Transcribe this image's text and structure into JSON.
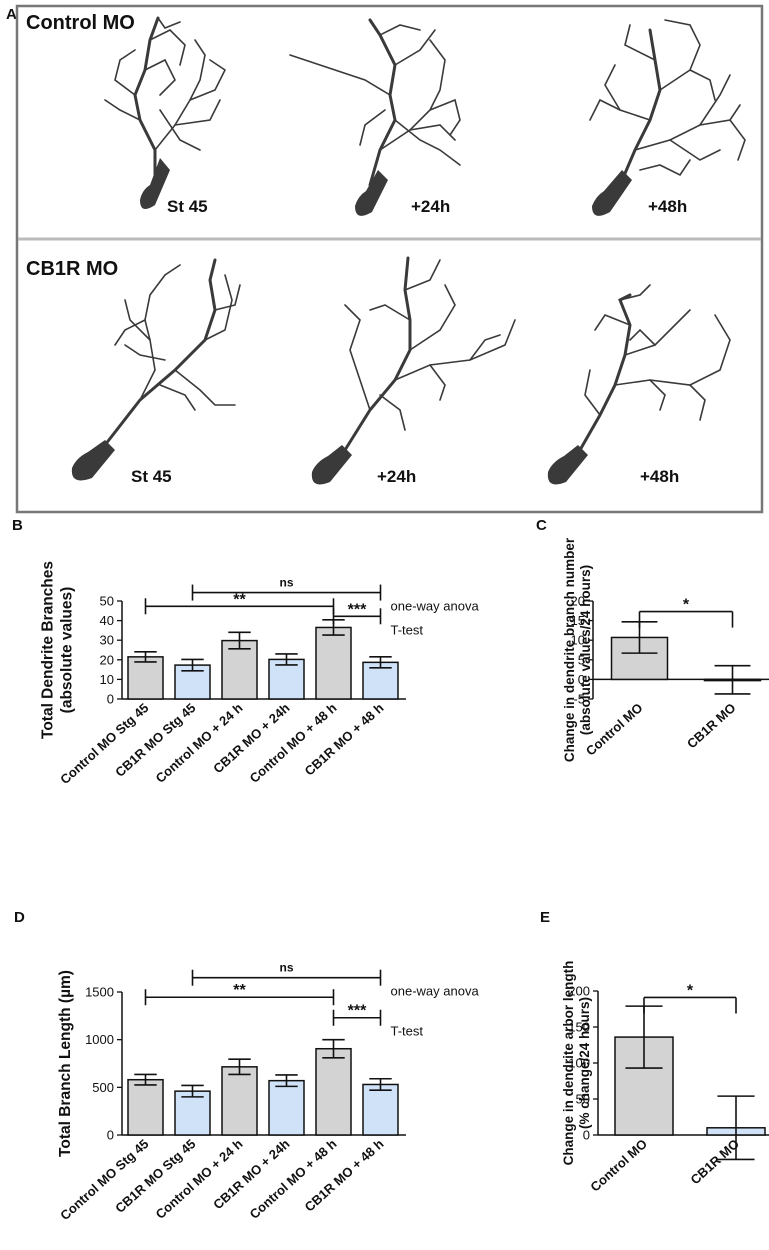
{
  "panel_a": {
    "letter": "A",
    "rows": [
      {
        "group": "Control MO",
        "timepoints": [
          "St 45",
          "+24h",
          "+48h"
        ]
      },
      {
        "group": "CB1R MO",
        "timepoints": [
          "St 45",
          "+24h",
          "+48h"
        ]
      }
    ]
  },
  "colors": {
    "gray_bar": "#d3d3d3",
    "blue_bar": "#cfe2f8",
    "stroke": "#111111",
    "neuron": "#3a3a3a"
  },
  "chart_data": [
    {
      "id": "B",
      "letter": "B",
      "type": "bar",
      "ylabel": "Total Dendrite Branches\n(absolute values)",
      "ylim": [
        0,
        50
      ],
      "yticks": [
        0,
        10,
        20,
        30,
        40,
        50
      ],
      "categories": [
        "Control MO Stg 45",
        "CB1R MO Stg 45",
        "Control MO + 24 h",
        "CB1R MO + 24h",
        "Control MO + 48 h",
        "CB1R MO + 48 h"
      ],
      "values": [
        21.5,
        17.3,
        29.8,
        20.2,
        36.5,
        18.7
      ],
      "errors": [
        2.6,
        2.9,
        4.2,
        2.8,
        3.9,
        2.8
      ],
      "colors": [
        "gray",
        "blue",
        "gray",
        "blue",
        "gray",
        "blue"
      ],
      "annotations": [
        {
          "label": "ns",
          "from": 1,
          "to": 5,
          "y": 54.3,
          "side": "one-way anova",
          "ticks": "both"
        },
        {
          "label": "**",
          "from": 0,
          "to": 4,
          "y": 47.3,
          "ticks": "both"
        },
        {
          "label": "***",
          "from": 4,
          "to": 5,
          "y": 42.2,
          "side": "T-test",
          "ticks": "both"
        }
      ]
    },
    {
      "id": "C",
      "letter": "C",
      "type": "bar",
      "ylabel": "Change in dendrite branch number\n(absolute values/24 hours)",
      "ylim": [
        -5,
        20
      ],
      "yticks": [
        -5,
        0,
        5,
        10,
        15,
        20
      ],
      "categories": [
        "Control MO",
        "CB1R MO"
      ],
      "values": [
        10.7,
        -0.1
      ],
      "errors": [
        4.0,
        3.6
      ],
      "colors": [
        "gray",
        "blue"
      ],
      "annotations": [
        {
          "label": "*",
          "from": 0,
          "to": 1,
          "y": 17.3,
          "ticks": "down"
        }
      ]
    },
    {
      "id": "D",
      "letter": "D",
      "type": "bar",
      "ylabel": "Total Branch Length (µm)",
      "ylim": [
        0,
        1500
      ],
      "yticks": [
        0,
        500,
        1000,
        1500
      ],
      "categories": [
        "Control MO Stg 45",
        "CB1R MO Stg 45",
        "Control MO + 24 h",
        "CB1R MO + 24h",
        "Control MO + 48 h",
        "CB1R MO + 48 h"
      ],
      "values": [
        580,
        460,
        715,
        570,
        905,
        530
      ],
      "errors": [
        55,
        60,
        80,
        60,
        95,
        60
      ],
      "colors": [
        "gray",
        "blue",
        "gray",
        "blue",
        "gray",
        "blue"
      ],
      "annotations": [
        {
          "label": "ns",
          "from": 1,
          "to": 5,
          "y": 1650,
          "side": "one-way anova",
          "ticks": "both"
        },
        {
          "label": "**",
          "from": 0,
          "to": 4,
          "y": 1445,
          "ticks": "both"
        },
        {
          "label": "***",
          "from": 4,
          "to": 5,
          "y": 1230,
          "side": "T-test",
          "ticks": "both"
        }
      ]
    },
    {
      "id": "E",
      "letter": "E",
      "type": "bar",
      "ylabel": "Change in dendrite arbor length\n(% change/24 hours)",
      "ylim": [
        0,
        200
      ],
      "yticks": [
        0,
        50,
        100,
        150,
        200
      ],
      "categories": [
        "Control MO",
        "CB1R MO"
      ],
      "values": [
        136,
        10
      ],
      "errors": [
        43,
        44
      ],
      "colors": [
        "gray",
        "blue"
      ],
      "annotations": [
        {
          "label": "*",
          "from": 0,
          "to": 1,
          "y": 191,
          "ticks": "down"
        }
      ]
    }
  ]
}
